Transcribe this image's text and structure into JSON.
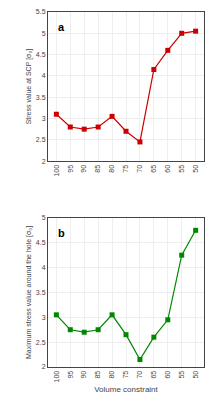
{
  "chart_data": [
    {
      "type": "line",
      "x": [
        100,
        95,
        90,
        85,
        80,
        75,
        70,
        65,
        60,
        55,
        50
      ],
      "values": [
        3.1,
        2.8,
        2.75,
        2.8,
        3.05,
        2.7,
        2.45,
        4.15,
        4.6,
        5.0,
        5.05
      ],
      "ylabel": "Stress value at SCP [σ₀]",
      "annotation": "a",
      "color": "#cc0000",
      "marker": "square",
      "xlim": [
        103,
        47
      ],
      "xticks": [
        100,
        95,
        90,
        85,
        80,
        75,
        70,
        65,
        60,
        55,
        50
      ],
      "ylim": [
        2,
        5.5
      ],
      "yticks": [
        2,
        2.5,
        3,
        3.5,
        4,
        4.5,
        5,
        5.5
      ],
      "grid": true
    },
    {
      "type": "line",
      "x": [
        100,
        95,
        90,
        85,
        80,
        75,
        70,
        65,
        60,
        55,
        50
      ],
      "values": [
        3.05,
        2.75,
        2.7,
        2.75,
        3.05,
        2.65,
        2.15,
        2.6,
        2.95,
        4.25,
        4.75
      ],
      "ylabel": "Maximum stress value around the hole [σ₀]",
      "xlabel": "Volume constraint",
      "annotation": "b",
      "color": "#008800",
      "marker": "square",
      "xlim": [
        103,
        47
      ],
      "xticks": [
        100,
        95,
        90,
        85,
        80,
        75,
        70,
        65,
        60,
        55,
        50
      ],
      "ylim": [
        2,
        5
      ],
      "yticks": [
        2,
        2.5,
        3,
        3.5,
        4,
        4.5,
        5
      ],
      "grid": true
    }
  ]
}
